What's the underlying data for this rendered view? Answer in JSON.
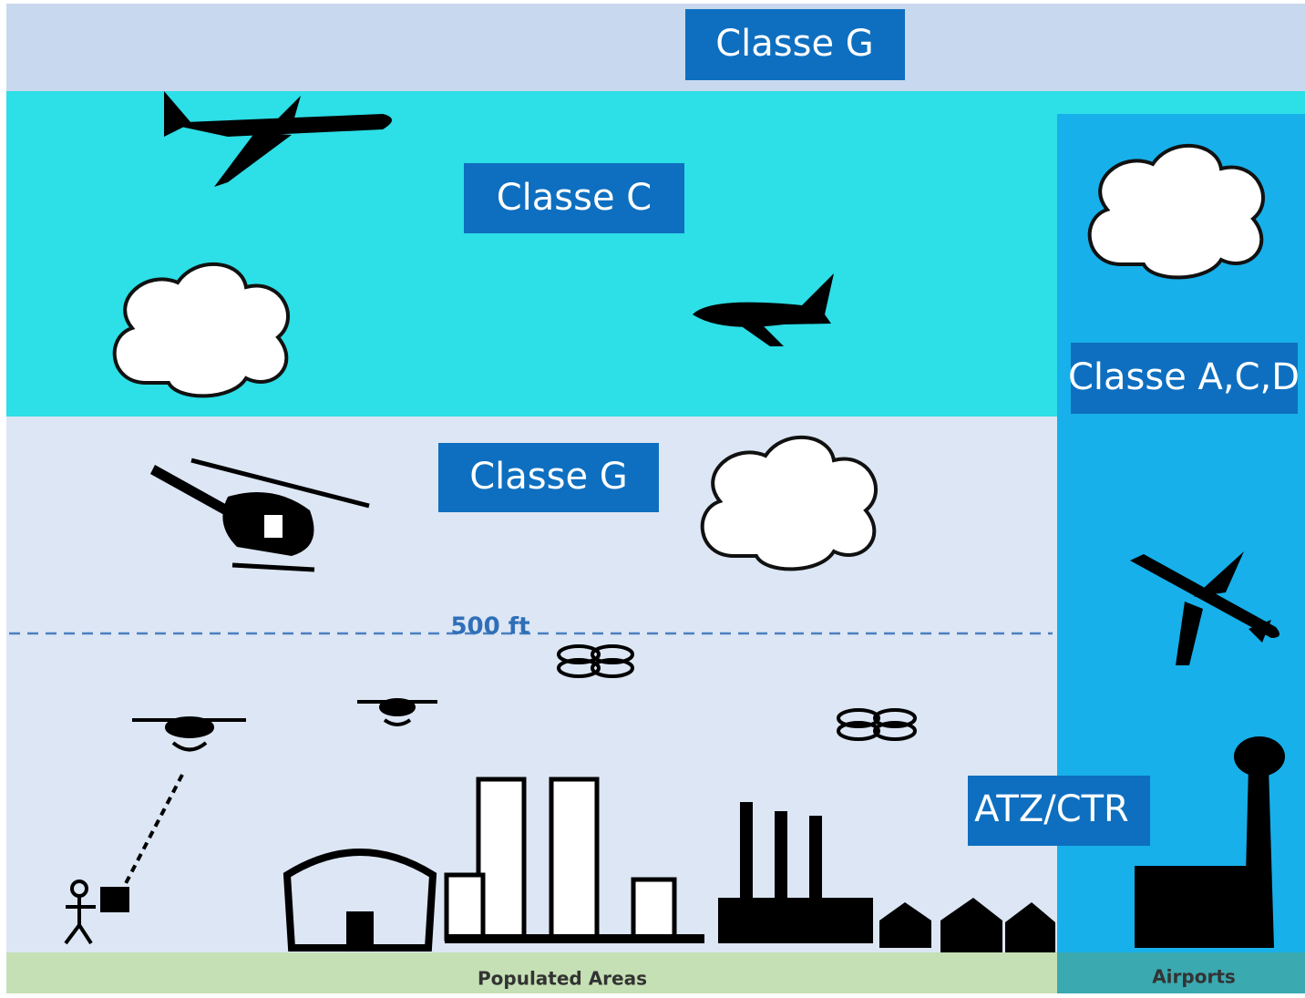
{
  "zones": {
    "top": {
      "label": "Classe G"
    },
    "upper": {
      "label": "Classe C"
    },
    "airport": {
      "label": "Classe A,C,D"
    },
    "lower": {
      "label": "Classe G"
    },
    "atz": {
      "label": "ATZ/CTR"
    }
  },
  "altitude_line": {
    "label": "500 ft"
  },
  "ground": {
    "left": "Populated Areas",
    "right": "Airports"
  }
}
